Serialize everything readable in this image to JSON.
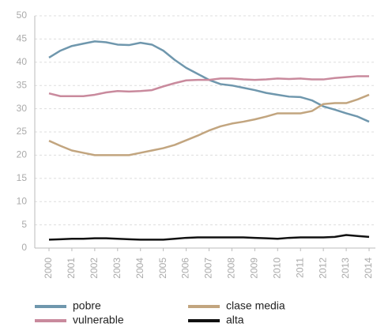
{
  "chart_data": {
    "type": "line",
    "x": [
      2000,
      2000.5,
      2001,
      2001.5,
      2002,
      2002.5,
      2003,
      2003.5,
      2004,
      2004.5,
      2005,
      2005.5,
      2006,
      2006.5,
      2007,
      2007.5,
      2008,
      2008.5,
      2009,
      2009.5,
      2010,
      2010.5,
      2011,
      2011.5,
      2012,
      2012.5,
      2013,
      2013.5,
      2014
    ],
    "series": [
      {
        "name": "pobre",
        "color": "#6f97ad",
        "values": [
          41,
          42.5,
          43.5,
          44,
          44.5,
          44.3,
          43.8,
          43.7,
          44.2,
          43.8,
          42.5,
          40.5,
          38.8,
          37.5,
          36.2,
          35.3,
          35,
          34.5,
          34,
          33.4,
          33,
          32.6,
          32.5,
          31.8,
          30.5,
          29.8,
          29,
          28.3,
          27.2
        ]
      },
      {
        "name": "vulnerable",
        "color": "#c98a9d",
        "values": [
          33.3,
          32.7,
          32.7,
          32.7,
          33,
          33.5,
          33.8,
          33.7,
          33.8,
          34,
          34.8,
          35.5,
          36.1,
          36.2,
          36.2,
          36.5,
          36.5,
          36.3,
          36.2,
          36.3,
          36.5,
          36.4,
          36.5,
          36.3,
          36.3,
          36.6,
          36.8,
          37,
          37
        ]
      },
      {
        "name": "clase media",
        "color": "#c2a57f",
        "values": [
          23.1,
          22,
          21,
          20.5,
          20,
          20,
          20,
          20,
          20.5,
          21,
          21.5,
          22.2,
          23.2,
          24.2,
          25.3,
          26.2,
          26.8,
          27.2,
          27.7,
          28.3,
          29,
          29,
          29,
          29.5,
          31,
          31.2,
          31.2,
          32,
          33
        ]
      },
      {
        "name": "alta",
        "color": "#111111",
        "values": [
          1.8,
          1.9,
          2.0,
          2.0,
          2.1,
          2.1,
          2.0,
          1.9,
          1.8,
          1.8,
          1.8,
          2.0,
          2.2,
          2.3,
          2.3,
          2.3,
          2.3,
          2.3,
          2.2,
          2.1,
          2.0,
          2.2,
          2.3,
          2.3,
          2.3,
          2.4,
          2.8,
          2.6,
          2.4
        ]
      }
    ],
    "xlim": [
      2000,
      2014
    ],
    "xticks": [
      2000,
      2001,
      2002,
      2003,
      2004,
      2005,
      2006,
      2007,
      2008,
      2009,
      2010,
      2011,
      2012,
      2013,
      2014
    ],
    "ylim": [
      0,
      50
    ],
    "yticks": [
      0,
      5,
      10,
      15,
      20,
      25,
      30,
      35,
      40,
      45,
      50
    ],
    "grid": true
  }
}
